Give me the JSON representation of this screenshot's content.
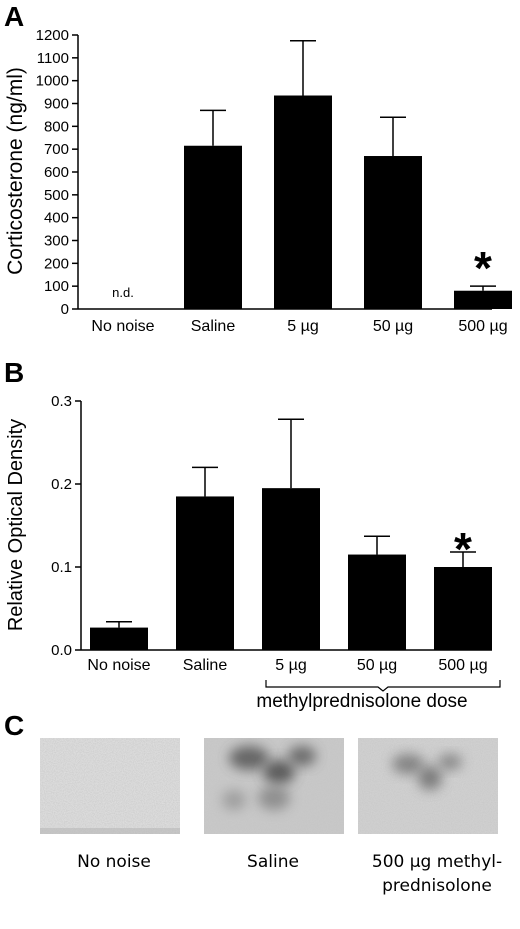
{
  "panel_letters": {
    "a": "A",
    "b": "B",
    "c": "C"
  },
  "chart_data": [
    {
      "type": "bar",
      "panel": "A",
      "ylabel": "Corticosterone (ng/ml)",
      "ylim": [
        0,
        1200
      ],
      "yticks": [
        "0",
        "100",
        "200",
        "300",
        "400",
        "500",
        "600",
        "700",
        "800",
        "900",
        "1000",
        "1100",
        "1200"
      ],
      "categories": [
        "No noise",
        "Saline",
        "5 µg",
        "50 µg",
        "500 µg"
      ],
      "values": [
        null,
        715,
        935,
        670,
        80
      ],
      "errors": [
        null,
        155,
        240,
        170,
        20
      ],
      "not_detected_label": "n.d.",
      "significance_marker": "*",
      "significant_category_index": 4
    },
    {
      "type": "bar",
      "panel": "B",
      "ylabel": "Relative Optical Density",
      "ylim": [
        0,
        0.3
      ],
      "yticks": [
        "0.0",
        "0.1",
        "0.2",
        "0.3"
      ],
      "categories": [
        "No noise",
        "Saline",
        "5 µg",
        "50 µg",
        "500 µg"
      ],
      "values": [
        0.027,
        0.185,
        0.195,
        0.115,
        0.1
      ],
      "errors": [
        0.007,
        0.035,
        0.083,
        0.022,
        0.018
      ],
      "significance_marker": "*",
      "significant_category_index": 4,
      "bracket_label": "methylprednisolone dose"
    }
  ],
  "panel_c": {
    "images": [
      {
        "caption_lines": [
          "No noise"
        ],
        "texture": "light"
      },
      {
        "caption_lines": [
          "Saline"
        ],
        "texture": "dark-stain"
      },
      {
        "caption_lines": [
          "500 µg methyl-",
          "prednisolone"
        ],
        "texture": "medium-stain"
      }
    ]
  }
}
